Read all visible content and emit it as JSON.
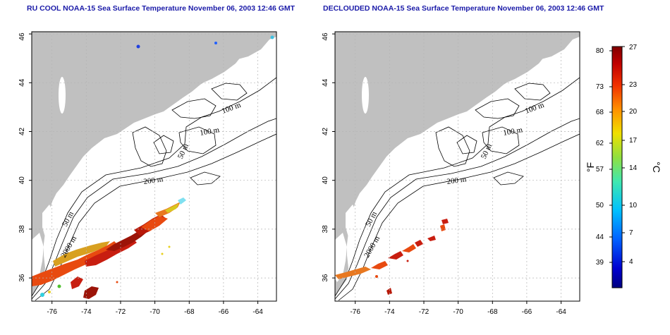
{
  "panels": [
    {
      "title": "RU COOL NOAA-15 Sea Surface Temperature November 06, 2003 12:46 GMT",
      "x_ticks": [
        "-76",
        "-74",
        "-72",
        "-70",
        "-68",
        "-66",
        "-64"
      ],
      "y_ticks": [
        "36",
        "38",
        "40",
        "42",
        "44",
        "46"
      ],
      "contour_labels": [
        "100 m",
        "100 m",
        "50 m",
        "200 m",
        "50 m",
        "2000 m"
      ]
    },
    {
      "title": "DECLOUDED NOAA-15 Sea Surface Temperature November 06, 2003 12:46 GMT",
      "x_ticks": [
        "-76",
        "-74",
        "-72",
        "-70",
        "-68",
        "-66",
        "-64"
      ],
      "y_ticks": [
        "36",
        "38",
        "40",
        "42",
        "44",
        "46"
      ],
      "contour_labels": [
        "100 m",
        "100 m",
        "50 m",
        "200 m",
        "50 m",
        "2000 m"
      ]
    }
  ],
  "colorbar": {
    "fahrenheit_ticks": [
      "80",
      "73",
      "68",
      "62",
      "57",
      "50",
      "44",
      "39"
    ],
    "celsius_ticks": [
      "27",
      "23",
      "20",
      "17",
      "14",
      "10",
      "7",
      "4"
    ],
    "unit_f": "°F",
    "unit_c": "°C"
  },
  "colors": {
    "title": "#1a1aa8",
    "land": "#c0c0c0",
    "ocean": "#ffffff",
    "grid": "#b4b4b4"
  }
}
